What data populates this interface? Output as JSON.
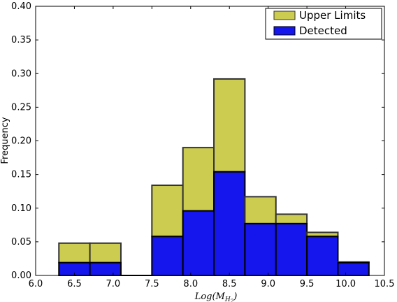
{
  "chart_data": {
    "type": "bar",
    "stacked": true,
    "title": "",
    "xlabel": "Log(M",
    "xlabel_subscript": "H",
    "xlabel_subsubscript": "2",
    "xlabel_close": ")",
    "ylabel": "Frequency",
    "xlim": [
      6.0,
      10.5
    ],
    "ylim": [
      0.0,
      0.4
    ],
    "xticks": [
      "6.0",
      "6.5",
      "7.0",
      "7.5",
      "8.0",
      "8.5",
      "9.0",
      "9.5",
      "10.0",
      "10.5"
    ],
    "yticks": [
      "0.00",
      "0.05",
      "0.10",
      "0.15",
      "0.20",
      "0.25",
      "0.30",
      "0.35",
      "0.40"
    ],
    "grid": false,
    "legend_position": "top-right",
    "bins": [
      {
        "x0": 6.3,
        "x1": 6.7,
        "detected": 0.019,
        "total": 0.048
      },
      {
        "x0": 6.7,
        "x1": 7.1,
        "detected": 0.019,
        "total": 0.048
      },
      {
        "x0": 7.5,
        "x1": 7.9,
        "detected": 0.058,
        "total": 0.134
      },
      {
        "x0": 7.9,
        "x1": 8.3,
        "detected": 0.096,
        "total": 0.19
      },
      {
        "x0": 8.3,
        "x1": 8.7,
        "detected": 0.154,
        "total": 0.292
      },
      {
        "x0": 8.7,
        "x1": 9.1,
        "detected": 0.077,
        "total": 0.117
      },
      {
        "x0": 9.1,
        "x1": 9.5,
        "detected": 0.077,
        "total": 0.091
      },
      {
        "x0": 9.5,
        "x1": 9.9,
        "detected": 0.058,
        "total": 0.064
      },
      {
        "x0": 9.9,
        "x1": 10.3,
        "detected": 0.019,
        "total": 0.02
      }
    ],
    "series": [
      {
        "name": "Upper Limits",
        "color": "#cccc50"
      },
      {
        "name": "Detected",
        "color": "#1515ee"
      }
    ]
  }
}
